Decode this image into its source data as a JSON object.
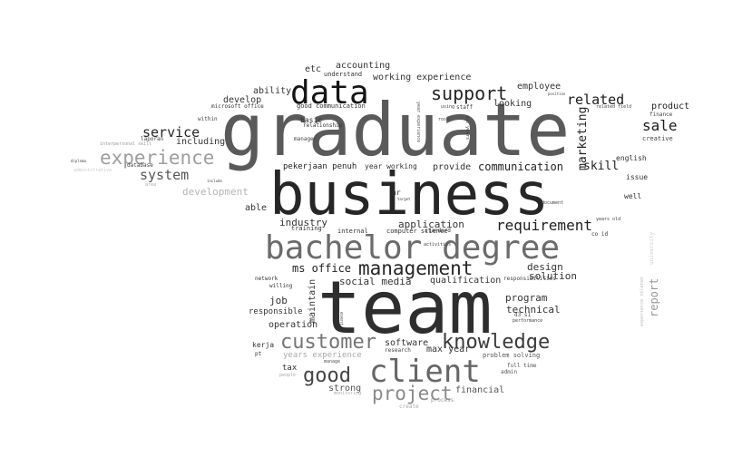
{
  "words": [
    {
      "text": "graduate",
      "color": "#5a5a5a"
    },
    {
      "text": "business",
      "color": "#262626"
    },
    {
      "text": "team",
      "color": "#2e2e2e"
    },
    {
      "text": "bachelor degree",
      "color": "#6b6b6b"
    },
    {
      "text": "data",
      "color": "#141414"
    },
    {
      "text": "client",
      "color": "#666666"
    },
    {
      "text": "management",
      "color": "#262626"
    },
    {
      "text": "customer",
      "color": "#757575"
    },
    {
      "text": "knowledge",
      "color": "#3a3a3a"
    },
    {
      "text": "support",
      "color": "#262626"
    },
    {
      "text": "experience",
      "color": "#9e9e9e"
    },
    {
      "text": "good",
      "color": "#444444"
    },
    {
      "text": "project",
      "color": "#8a8a8a"
    },
    {
      "text": "requirement",
      "color": "#1f1f1f"
    },
    {
      "text": "sale",
      "color": "#1a1a1a"
    },
    {
      "text": "related",
      "color": "#1a1a1a"
    },
    {
      "text": "marketing",
      "color": "#222222"
    },
    {
      "text": "service",
      "color": "#262626"
    },
    {
      "text": "system",
      "color": "#555555"
    },
    {
      "text": "skill",
      "color": "#222222"
    },
    {
      "text": "communication",
      "color": "#222222"
    },
    {
      "text": "ms office",
      "color": "#222222"
    },
    {
      "text": "social media",
      "color": "#333333"
    },
    {
      "text": "accounting",
      "color": "#333333"
    },
    {
      "text": "working experience",
      "color": "#333333"
    },
    {
      "text": "development",
      "color": "#b5b5b5"
    },
    {
      "text": "application",
      "color": "#333333"
    },
    {
      "text": "industry",
      "color": "#333333"
    },
    {
      "text": "design",
      "color": "#333333"
    },
    {
      "text": "solution",
      "color": "#333333"
    },
    {
      "text": "program",
      "color": "#333333"
    },
    {
      "text": "technical",
      "color": "#333333"
    },
    {
      "text": "software",
      "color": "#333333"
    },
    {
      "text": "max year",
      "color": "#333333"
    },
    {
      "text": "report",
      "color": "#999999"
    },
    {
      "text": "maintain",
      "color": "#333333"
    },
    {
      "text": "qualification",
      "color": "#333333"
    },
    {
      "text": "product",
      "color": "#222222"
    },
    {
      "text": "employee",
      "color": "#333333"
    },
    {
      "text": "looking",
      "color": "#333333"
    },
    {
      "text": "pekerjaan penuh",
      "color": "#222222"
    },
    {
      "text": "provide",
      "color": "#333333"
    },
    {
      "text": "year working",
      "color": "#333333"
    },
    {
      "text": "ability",
      "color": "#333333"
    },
    {
      "text": "develop",
      "color": "#333333"
    },
    {
      "text": "including",
      "color": "#333333"
    },
    {
      "text": "operation",
      "color": "#333333"
    },
    {
      "text": "responsible",
      "color": "#333333"
    },
    {
      "text": "job",
      "color": "#333333"
    },
    {
      "text": "strong",
      "color": "#555555"
    },
    {
      "text": "financial",
      "color": "#555555"
    },
    {
      "text": "years experience",
      "color": "#aaaaaa"
    },
    {
      "text": "tax",
      "color": "#333333"
    },
    {
      "text": "kerja",
      "color": "#333333"
    },
    {
      "text": "able",
      "color": "#333333"
    },
    {
      "text": "etc",
      "color": "#333333"
    },
    {
      "text": "basic",
      "color": "#333333"
    },
    {
      "text": "manager",
      "color": "#444444"
    },
    {
      "text": "hr",
      "color": "#333333"
    },
    {
      "text": "english",
      "color": "#333333"
    },
    {
      "text": "issue",
      "color": "#333333"
    },
    {
      "text": "well",
      "color": "#333333"
    },
    {
      "text": "creative",
      "color": "#444444"
    },
    {
      "text": "finance",
      "color": "#444444"
    },
    {
      "text": "understand",
      "color": "#333333"
    },
    {
      "text": "good communication",
      "color": "#333333"
    },
    {
      "text": "relationship",
      "color": "#333333"
    },
    {
      "text": "microsoft office",
      "color": "#333333"
    },
    {
      "text": "within",
      "color": "#444444"
    },
    {
      "text": "laporan",
      "color": "#444444"
    },
    {
      "text": "database",
      "color": "#444444"
    },
    {
      "text": "training",
      "color": "#333333"
    },
    {
      "text": "internal",
      "color": "#333333"
    },
    {
      "text": "computer science",
      "color": "#333333"
    },
    {
      "text": "standard",
      "color": "#333333"
    },
    {
      "text": "network",
      "color": "#333333"
    },
    {
      "text": "willing",
      "color": "#333333"
    },
    {
      "text": "pt",
      "color": "#333333"
    },
    {
      "text": "research",
      "color": "#444444"
    },
    {
      "text": "problem solving",
      "color": "#555555"
    },
    {
      "text": "full time",
      "color": "#555555"
    },
    {
      "text": "admin",
      "color": "#555555"
    },
    {
      "text": "process",
      "color": "#999999"
    },
    {
      "text": "create",
      "color": "#aaaaaa"
    },
    {
      "text": "staff",
      "color": "#444444"
    },
    {
      "text": "rose",
      "color": "#444444"
    },
    {
      "text": "age years",
      "color": "#444444"
    },
    {
      "text": "year experience",
      "color": "#555555"
    },
    {
      "text": "related field",
      "color": "#444444"
    },
    {
      "text": "position",
      "color": "#444444"
    },
    {
      "text": "years old",
      "color": "#444444"
    },
    {
      "text": "co id",
      "color": "#333333"
    },
    {
      "text": "d3 s1",
      "color": "#444444"
    },
    {
      "text": "performance",
      "color": "#444444"
    },
    {
      "text": "responsibilities",
      "color": "#444444"
    },
    {
      "text": "activities",
      "color": "#444444"
    },
    {
      "text": "event",
      "color": "#555555"
    },
    {
      "text": "people",
      "color": "#aaaaaa"
    },
    {
      "text": "monitoring",
      "color": "#aaaaaa"
    },
    {
      "text": "manage",
      "color": "#555555"
    },
    {
      "text": "using",
      "color": "#444444"
    },
    {
      "text": "document",
      "color": "#444444"
    },
    {
      "text": "target",
      "color": "#444444"
    },
    {
      "text": "interpersonal skill",
      "color": "#999999"
    },
    {
      "text": "administrative",
      "color": "#cccccc"
    },
    {
      "text": "diploma",
      "color": "#444444"
    },
    {
      "text": "area",
      "color": "#aaaaaa"
    },
    {
      "text": "include",
      "color": "#444444"
    },
    {
      "text": "experience related",
      "color": "#bbbbbb"
    },
    {
      "text": "university",
      "color": "#cccccc"
    }
  ]
}
